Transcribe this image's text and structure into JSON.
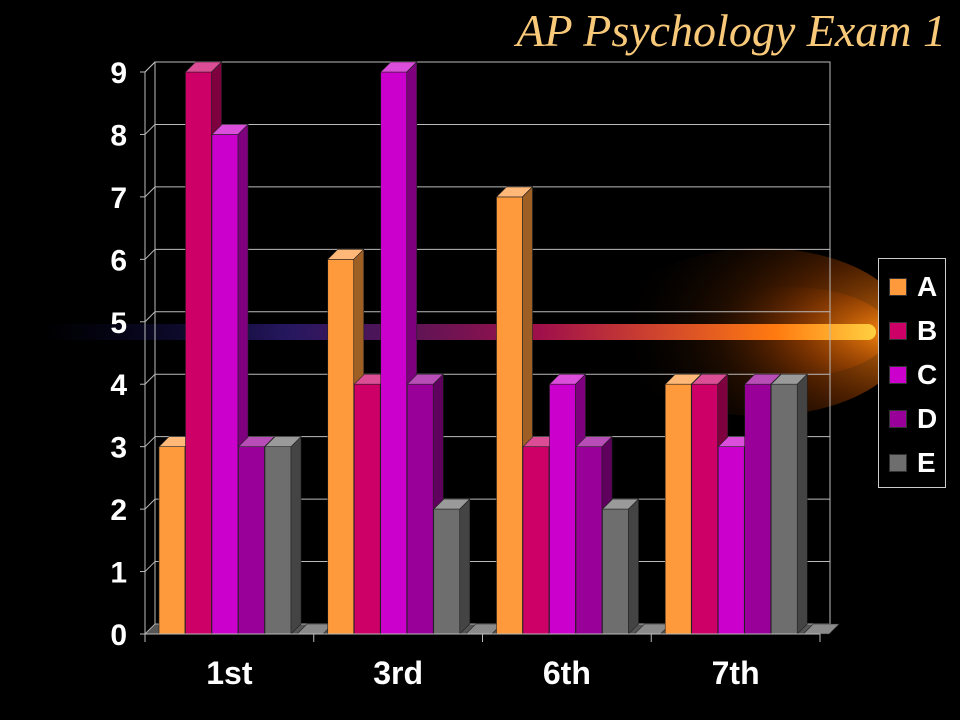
{
  "title": "AP Psychology Exam 1",
  "colors": {
    "background": "#000000",
    "title": "#F9C97A",
    "A": "#FF9A3C",
    "B": "#CC0066",
    "C": "#CC00CC",
    "D": "#990099",
    "E": "#6E6E6E"
  },
  "chart_data": {
    "type": "bar",
    "title": "AP Psychology Exam 1",
    "xlabel": "",
    "ylabel": "",
    "categories": [
      "1st",
      "3rd",
      "6th",
      "7th"
    ],
    "series": [
      {
        "name": "A",
        "values": [
          3,
          6,
          7,
          4
        ]
      },
      {
        "name": "B",
        "values": [
          9,
          4,
          3,
          4
        ]
      },
      {
        "name": "C",
        "values": [
          8,
          9,
          4,
          3
        ]
      },
      {
        "name": "D",
        "values": [
          3,
          4,
          3,
          4
        ]
      },
      {
        "name": "E",
        "values": [
          3,
          2,
          2,
          4
        ]
      }
    ],
    "ylim": [
      0,
      9
    ],
    "yticks": [
      0,
      1,
      2,
      3,
      4,
      5,
      6,
      7,
      8,
      9
    ],
    "grid": true,
    "legend_position": "right",
    "style": "3d-clustered-column"
  }
}
